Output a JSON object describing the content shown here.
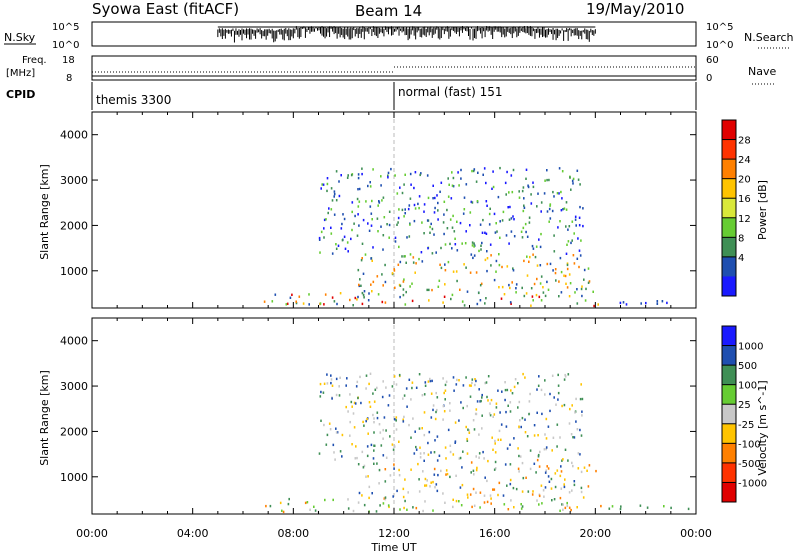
{
  "header": {
    "radar": "Syowa East (fitACF)",
    "beam": "Beam 14",
    "date": "19/May/2010"
  },
  "info_panels": {
    "nsky_label": "N.Sky",
    "nsky_ticks": [
      "10^5",
      "10^0"
    ],
    "nsearch_label": "N.Search",
    "nsearch_ticks": [
      "10^5",
      "10^0"
    ],
    "freq_label_1": "Freq.",
    "freq_label_2": "[MHz]",
    "freq_ticks": [
      "18",
      "8"
    ],
    "nave_label": "Nave",
    "nave_ticks": [
      "60",
      "0"
    ],
    "cpid_label": "CPID",
    "modes": [
      {
        "name": "themis 3300",
        "start_hour": 0
      },
      {
        "name": "normal (fast) 151",
        "start_hour": 12
      }
    ]
  },
  "chart_data": [
    {
      "type": "heatmap",
      "panel": "power",
      "ylabel": "Slant Range [km]",
      "xlabel": "Time UT",
      "x_ticks": [
        "00:00",
        "04:00",
        "08:00",
        "12:00",
        "16:00",
        "20:00",
        "00:00"
      ],
      "xlim_hours": [
        0,
        24
      ],
      "ylim": [
        180,
        4500
      ],
      "y_ticks": [
        1000,
        2000,
        3000,
        4000
      ],
      "colorbar_label": "Power [dB]",
      "colorbar_ticks": [
        "28",
        "24",
        "20",
        "16",
        "12",
        "8",
        "4"
      ],
      "colorbar_colors": [
        "#e00000",
        "#ff3300",
        "#ff8000",
        "#ffc400",
        "#d9e83a",
        "#66cc33",
        "#3f8f55",
        "#1f4fb0",
        "#1a1aff"
      ],
      "scatter_regions": [
        {
          "t0": 6.8,
          "t1": 20.2,
          "r0": 250,
          "r1": 550,
          "colors": [
            "#e00000",
            "#ff8000",
            "#ffc400",
            "#66cc33",
            "#3f8f55",
            "#1f4fb0"
          ]
        },
        {
          "t0": 20.2,
          "t1": 23.8,
          "r0": 280,
          "r1": 420,
          "colors": [
            "#1f4fb0",
            "#1a1aff"
          ]
        },
        {
          "t0": 10.5,
          "t1": 20,
          "r0": 550,
          "r1": 1400,
          "colors": [
            "#ff8000",
            "#ffc400",
            "#66cc33",
            "#3f8f55",
            "#1f4fb0"
          ]
        },
        {
          "t0": 9,
          "t1": 19.5,
          "r0": 1400,
          "r1": 3300,
          "colors": [
            "#1f4fb0",
            "#3f8f55",
            "#66cc33",
            "#1a1aff"
          ]
        }
      ]
    },
    {
      "type": "heatmap",
      "panel": "velocity",
      "ylabel": "Slant Range [km]",
      "xlabel": "Time UT",
      "x_ticks": [
        "00:00",
        "04:00",
        "08:00",
        "12:00",
        "16:00",
        "20:00",
        "00:00"
      ],
      "xlim_hours": [
        0,
        24
      ],
      "ylim": [
        180,
        4500
      ],
      "y_ticks": [
        1000,
        2000,
        3000,
        4000
      ],
      "colorbar_label": "Velocity [m s^-1]",
      "colorbar_ticks": [
        "1000",
        "500",
        "100",
        "25",
        "-25",
        "-100",
        "-500",
        "-1000"
      ],
      "colorbar_colors": [
        "#1a1aff",
        "#1f4fb0",
        "#3f8f55",
        "#66cc33",
        "#c8c8c8",
        "#ffc400",
        "#ff8000",
        "#ff3300",
        "#e00000"
      ],
      "scatter_regions": [
        {
          "t0": 6.8,
          "t1": 20.2,
          "r0": 250,
          "r1": 550,
          "colors": [
            "#66cc33",
            "#3f8f55",
            "#ffc400",
            "#ff8000",
            "#c8c8c8"
          ]
        },
        {
          "t0": 20.2,
          "t1": 23.8,
          "r0": 280,
          "r1": 420,
          "colors": [
            "#3f8f55",
            "#66cc33"
          ]
        },
        {
          "t0": 10.5,
          "t1": 20,
          "r0": 550,
          "r1": 1400,
          "colors": [
            "#c8c8c8",
            "#ff8000",
            "#ffc400",
            "#3f8f55",
            "#1f4fb0"
          ]
        },
        {
          "t0": 9,
          "t1": 19.5,
          "r0": 1400,
          "r1": 3300,
          "colors": [
            "#c8c8c8",
            "#ffc400",
            "#3f8f55",
            "#1f4fb0"
          ]
        }
      ]
    }
  ]
}
